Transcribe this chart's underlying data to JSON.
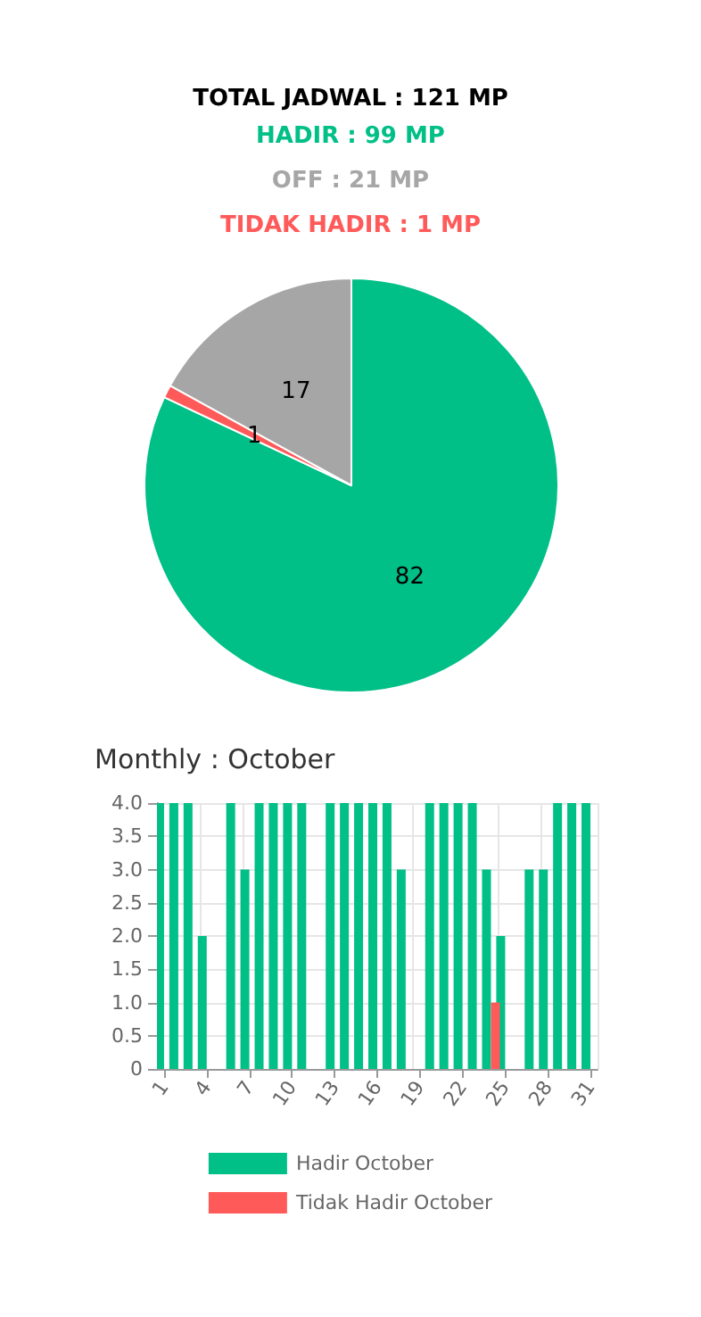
{
  "chart_data": [
    {
      "type": "pie",
      "title": "TOTAL JADWAL : 121 MP",
      "annotations": [
        "HADIR : 99 MP",
        "OFF : 21 MP",
        "TIDAK HADIR : 1 MP"
      ],
      "categories": [
        null,
        null,
        null
      ],
      "values": [
        82,
        1,
        17
      ],
      "colors": [
        "#00bf87",
        "#ff5a5a",
        "#a6a6a6"
      ],
      "data_labels": true,
      "legend": false
    },
    {
      "type": "bar",
      "title": "Monthly : October",
      "categories": [
        "1",
        null,
        null,
        "4",
        null,
        null,
        "7",
        null,
        null,
        "10",
        null,
        null,
        "13",
        null,
        null,
        "16",
        null,
        null,
        "19",
        null,
        null,
        "22",
        null,
        null,
        "25",
        null,
        null,
        "28",
        null,
        null,
        "31"
      ],
      "series": [
        {
          "name": "Hadir October",
          "color": "#00bf87",
          "values": [
            4,
            4,
            4,
            2,
            0,
            4,
            3,
            4,
            4,
            4,
            4,
            0,
            4,
            4,
            4,
            4,
            4,
            3,
            0,
            4,
            4,
            4,
            4,
            3,
            2,
            0,
            3,
            3,
            4,
            4,
            4
          ]
        },
        {
          "name": "Tidak Hadir October",
          "color": "#ff5a5a",
          "values": [
            0,
            0,
            0,
            0,
            0,
            0,
            0,
            0,
            0,
            0,
            0,
            0,
            0,
            0,
            0,
            0,
            0,
            0,
            0,
            0,
            0,
            0,
            0,
            1,
            0,
            0,
            0,
            0,
            0,
            0,
            0
          ]
        }
      ],
      "ylim": [
        0,
        4
      ],
      "yticks": [
        0,
        {
          "value": 0.5,
          "label": "0.5"
        },
        {
          "value": 1,
          "label": "1.0"
        },
        {
          "value": 1.5,
          "label": "1.5"
        },
        {
          "value": 2,
          "label": "2.0"
        },
        {
          "value": 2.5,
          "label": "2.5"
        },
        {
          "value": 3,
          "label": "3.0"
        },
        {
          "value": 3.5,
          "label": "3.5"
        },
        {
          "value": 4,
          "label": "4.0"
        }
      ],
      "grid": true,
      "legend": "bottom"
    }
  ]
}
